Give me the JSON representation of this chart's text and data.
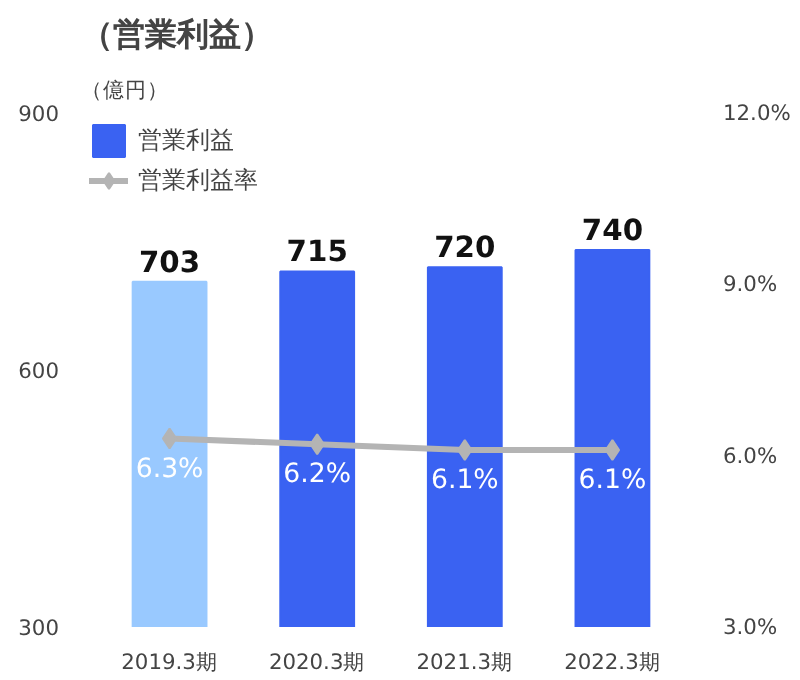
{
  "chart_data": {
    "type": "bar",
    "title": "（営業利益）",
    "ylabel": "（億円）",
    "categories": [
      "2019.3期",
      "2020.3期",
      "2021.3期",
      "2022.3期"
    ],
    "series": [
      {
        "name": "営業利益",
        "colors": [
          "#99c9ff",
          "#3a62f2",
          "#3a62f2",
          "#3a62f2"
        ],
        "color": "#3a62f2",
        "values": [
          703,
          715,
          720,
          740
        ],
        "value_labels": [
          "703",
          "715",
          "720",
          "740"
        ]
      },
      {
        "name": "営業利益率",
        "type": "line",
        "axis": "y2",
        "color": "#b4b4b4",
        "marker": "diamond",
        "values": [
          6.3,
          6.2,
          6.1,
          6.1
        ],
        "value_labels": [
          "6.3%",
          "6.2%",
          "6.1%",
          "6.1%"
        ]
      }
    ],
    "ylim": [
      300,
      900
    ],
    "yticks": [
      300,
      600,
      900
    ],
    "y2lim": [
      3,
      12
    ],
    "y2ticks": [
      {
        "value": 3,
        "label": "3.0%"
      },
      {
        "value": 6,
        "label": "6.0%"
      },
      {
        "value": 9,
        "label": "9.0%"
      },
      {
        "value": 12,
        "label": "12.0%"
      }
    ],
    "grid": false,
    "legend": "top left"
  }
}
